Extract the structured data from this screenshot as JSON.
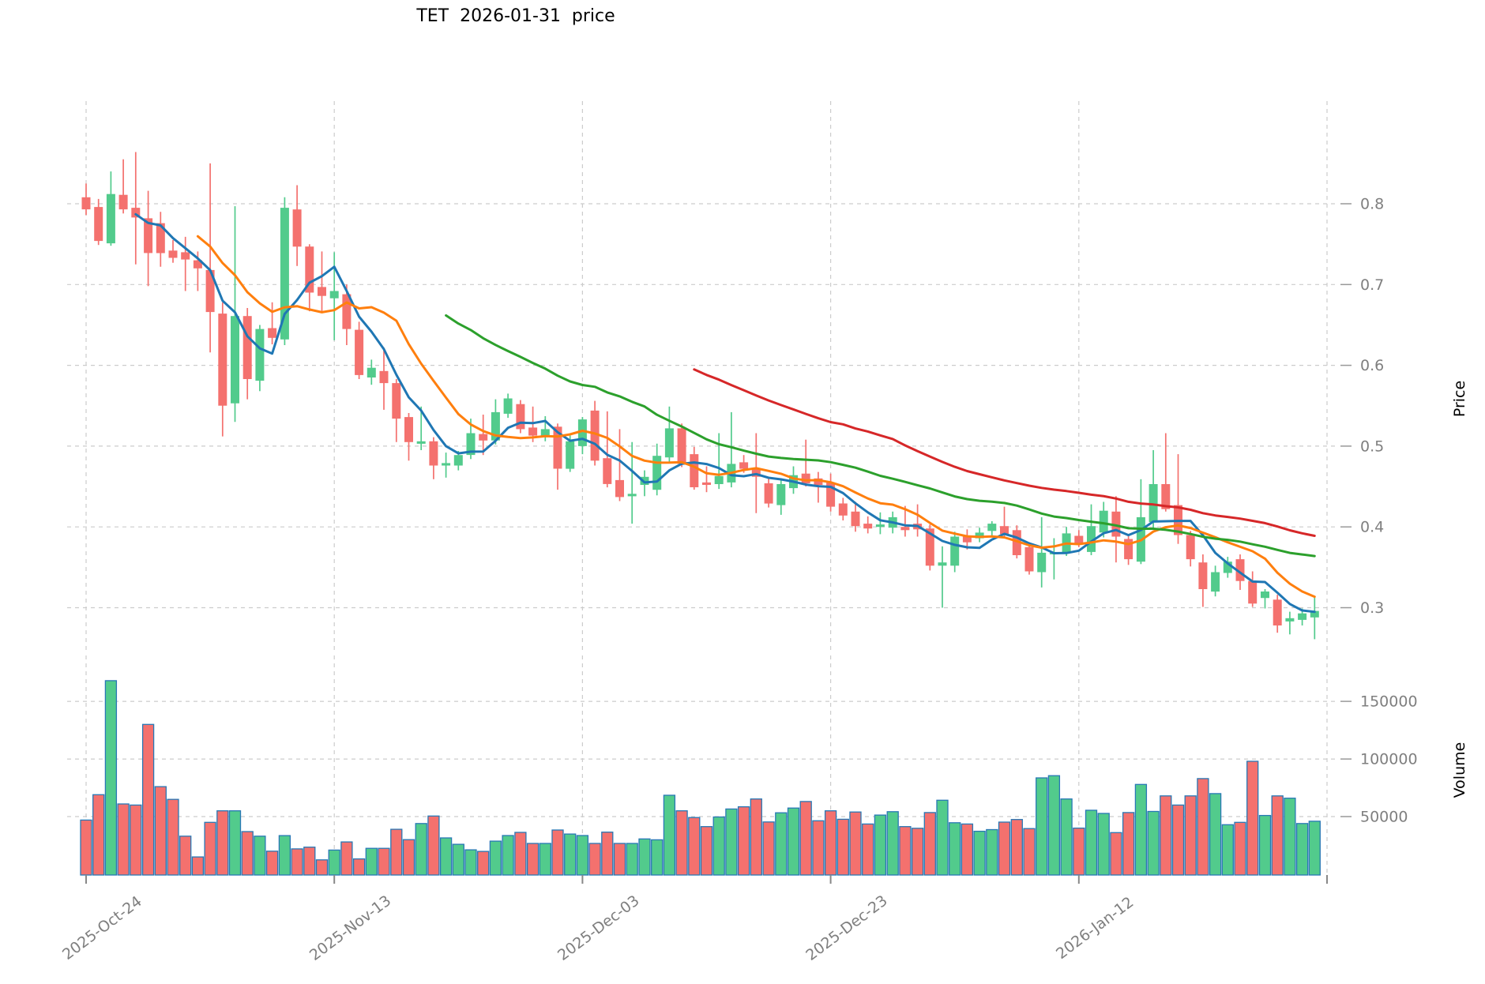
{
  "title": "TET  2026-01-31  price",
  "price_axis": {
    "label": "Price",
    "ticks": [
      0.8,
      0.7,
      0.6,
      0.5,
      0.4,
      0.3
    ]
  },
  "volume_axis": {
    "label": "Volume",
    "ticks": [
      150000,
      100000,
      50000
    ]
  },
  "colors": {
    "up": "#52cb8c",
    "down": "#f4716e",
    "volume_edge": "#2878b5",
    "ma5": "#1f77b4",
    "ma10": "#ff7f0e",
    "ma30": "#2ca02c",
    "ma50": "#d62728",
    "grid": "#cccccc",
    "tick_label": "#7f7f7f",
    "tick_mark": "#999999"
  },
  "chart_data": {
    "type": "candlestick",
    "title": "TET  2026-01-31  price",
    "xlabel": "",
    "ylabel": "Price",
    "ylabel2": "Volume",
    "price_ylim": [
      0.25,
      0.9
    ],
    "grid": true,
    "x_tick_labels": [
      {
        "index": 0,
        "label": "2025-Oct-24"
      },
      {
        "index": 20,
        "label": "2025-Nov-13"
      },
      {
        "index": 40,
        "label": "2025-Dec-03"
      },
      {
        "index": 60,
        "label": "2025-Dec-23"
      },
      {
        "index": 80,
        "label": "2026-Jan-12"
      }
    ],
    "x_gridline_indices": [
      0,
      20,
      40,
      60,
      80,
      100
    ],
    "moving_averages": [
      {
        "window": 5,
        "color_key": "ma5"
      },
      {
        "window": 10,
        "color_key": "ma10"
      },
      {
        "window": 30,
        "color_key": "ma30"
      },
      {
        "window": 50,
        "color_key": "ma50"
      }
    ],
    "dates": [
      "2025-10-24",
      "2025-10-25",
      "2025-10-26",
      "2025-10-27",
      "2025-10-28",
      "2025-10-29",
      "2025-10-30",
      "2025-10-31",
      "2025-11-01",
      "2025-11-02",
      "2025-11-03",
      "2025-11-04",
      "2025-11-05",
      "2025-11-06",
      "2025-11-07",
      "2025-11-08",
      "2025-11-09",
      "2025-11-10",
      "2025-11-11",
      "2025-11-12",
      "2025-11-13",
      "2025-11-14",
      "2025-11-15",
      "2025-11-16",
      "2025-11-17",
      "2025-11-18",
      "2025-11-19",
      "2025-11-20",
      "2025-11-21",
      "2025-11-22",
      "2025-11-23",
      "2025-11-24",
      "2025-11-25",
      "2025-11-26",
      "2025-11-27",
      "2025-11-28",
      "2025-11-29",
      "2025-11-30",
      "2025-12-01",
      "2025-12-02",
      "2025-12-03",
      "2025-12-04",
      "2025-12-05",
      "2025-12-06",
      "2025-12-07",
      "2025-12-08",
      "2025-12-09",
      "2025-12-10",
      "2025-12-11",
      "2025-12-12",
      "2025-12-13",
      "2025-12-14",
      "2025-12-15",
      "2025-12-16",
      "2025-12-17",
      "2025-12-18",
      "2025-12-19",
      "2025-12-20",
      "2025-12-21",
      "2025-12-22",
      "2025-12-23",
      "2025-12-24",
      "2025-12-25",
      "2025-12-26",
      "2025-12-27",
      "2025-12-28",
      "2025-12-29",
      "2025-12-30",
      "2025-12-31",
      "2026-01-01",
      "2026-01-02",
      "2026-01-03",
      "2026-01-04",
      "2026-01-05",
      "2026-01-06",
      "2026-01-07",
      "2026-01-08",
      "2026-01-09",
      "2026-01-10",
      "2026-01-11",
      "2026-01-12",
      "2026-01-13",
      "2026-01-14",
      "2026-01-15",
      "2026-01-16",
      "2026-01-17",
      "2026-01-18",
      "2026-01-19",
      "2026-01-20",
      "2026-01-21",
      "2026-01-22",
      "2026-01-23",
      "2026-01-24",
      "2026-01-25",
      "2026-01-26",
      "2026-01-27",
      "2026-01-28",
      "2026-01-29",
      "2026-01-30",
      "2026-01-31"
    ],
    "ohlc": [
      [
        0.808,
        0.825,
        0.786,
        0.793
      ],
      [
        0.796,
        0.806,
        0.749,
        0.754
      ],
      [
        0.751,
        0.84,
        0.748,
        0.812
      ],
      [
        0.811,
        0.855,
        0.788,
        0.793
      ],
      [
        0.795,
        0.864,
        0.725,
        0.783
      ],
      [
        0.782,
        0.816,
        0.698,
        0.739
      ],
      [
        0.776,
        0.79,
        0.722,
        0.739
      ],
      [
        0.742,
        0.755,
        0.727,
        0.733
      ],
      [
        0.74,
        0.759,
        0.692,
        0.731
      ],
      [
        0.73,
        0.741,
        0.692,
        0.72
      ],
      [
        0.718,
        0.85,
        0.616,
        0.666
      ],
      [
        0.664,
        0.678,
        0.512,
        0.55
      ],
      [
        0.553,
        0.797,
        0.53,
        0.661
      ],
      [
        0.661,
        0.671,
        0.558,
        0.583
      ],
      [
        0.581,
        0.65,
        0.568,
        0.645
      ],
      [
        0.646,
        0.678,
        0.626,
        0.634
      ],
      [
        0.632,
        0.808,
        0.625,
        0.795
      ],
      [
        0.793,
        0.823,
        0.723,
        0.747
      ],
      [
        0.747,
        0.75,
        0.667,
        0.69
      ],
      [
        0.697,
        0.741,
        0.665,
        0.686
      ],
      [
        0.683,
        0.74,
        0.631,
        0.692
      ],
      [
        0.688,
        0.7,
        0.625,
        0.645
      ],
      [
        0.644,
        0.654,
        0.583,
        0.588
      ],
      [
        0.585,
        0.607,
        0.576,
        0.597
      ],
      [
        0.593,
        0.622,
        0.545,
        0.578
      ],
      [
        0.578,
        0.583,
        0.505,
        0.534
      ],
      [
        0.536,
        0.541,
        0.482,
        0.505
      ],
      [
        0.503,
        0.549,
        0.495,
        0.506
      ],
      [
        0.506,
        0.511,
        0.459,
        0.476
      ],
      [
        0.476,
        0.492,
        0.461,
        0.479
      ],
      [
        0.476,
        0.494,
        0.47,
        0.489
      ],
      [
        0.489,
        0.534,
        0.484,
        0.516
      ],
      [
        0.515,
        0.539,
        0.489,
        0.507
      ],
      [
        0.507,
        0.558,
        0.502,
        0.542
      ],
      [
        0.54,
        0.565,
        0.535,
        0.559
      ],
      [
        0.552,
        0.557,
        0.516,
        0.521
      ],
      [
        0.523,
        0.549,
        0.505,
        0.513
      ],
      [
        0.513,
        0.537,
        0.506,
        0.521
      ],
      [
        0.524,
        0.528,
        0.446,
        0.472
      ],
      [
        0.472,
        0.513,
        0.468,
        0.506
      ],
      [
        0.5,
        0.536,
        0.49,
        0.533
      ],
      [
        0.544,
        0.556,
        0.476,
        0.482
      ],
      [
        0.485,
        0.543,
        0.449,
        0.453
      ],
      [
        0.458,
        0.521,
        0.432,
        0.437
      ],
      [
        0.438,
        0.505,
        0.404,
        0.441
      ],
      [
        0.452,
        0.47,
        0.438,
        0.462
      ],
      [
        0.446,
        0.503,
        0.439,
        0.488
      ],
      [
        0.486,
        0.549,
        0.479,
        0.522
      ],
      [
        0.522,
        0.528,
        0.474,
        0.478
      ],
      [
        0.49,
        0.499,
        0.446,
        0.449
      ],
      [
        0.455,
        0.475,
        0.443,
        0.452
      ],
      [
        0.453,
        0.516,
        0.447,
        0.463
      ],
      [
        0.455,
        0.542,
        0.449,
        0.478
      ],
      [
        0.48,
        0.489,
        0.467,
        0.472
      ],
      [
        0.472,
        0.516,
        0.417,
        0.462
      ],
      [
        0.454,
        0.46,
        0.424,
        0.429
      ],
      [
        0.427,
        0.458,
        0.415,
        0.453
      ],
      [
        0.448,
        0.475,
        0.441,
        0.464
      ],
      [
        0.466,
        0.508,
        0.45,
        0.454
      ],
      [
        0.46,
        0.468,
        0.43,
        0.452
      ],
      [
        0.455,
        0.466,
        0.419,
        0.425
      ],
      [
        0.429,
        0.436,
        0.408,
        0.414
      ],
      [
        0.419,
        0.431,
        0.394,
        0.401
      ],
      [
        0.404,
        0.413,
        0.392,
        0.398
      ],
      [
        0.4,
        0.418,
        0.391,
        0.403
      ],
      [
        0.399,
        0.419,
        0.392,
        0.412
      ],
      [
        0.4,
        0.426,
        0.388,
        0.396
      ],
      [
        0.404,
        0.428,
        0.388,
        0.397
      ],
      [
        0.398,
        0.403,
        0.346,
        0.352
      ],
      [
        0.352,
        0.376,
        0.3,
        0.356
      ],
      [
        0.352,
        0.394,
        0.344,
        0.388
      ],
      [
        0.388,
        0.397,
        0.372,
        0.381
      ],
      [
        0.386,
        0.399,
        0.381,
        0.393
      ],
      [
        0.395,
        0.407,
        0.389,
        0.404
      ],
      [
        0.401,
        0.425,
        0.386,
        0.391
      ],
      [
        0.396,
        0.402,
        0.361,
        0.365
      ],
      [
        0.375,
        0.381,
        0.341,
        0.345
      ],
      [
        0.344,
        0.412,
        0.325,
        0.368
      ],
      [
        0.367,
        0.386,
        0.335,
        0.368
      ],
      [
        0.368,
        0.4,
        0.364,
        0.392
      ],
      [
        0.389,
        0.396,
        0.375,
        0.38
      ],
      [
        0.369,
        0.428,
        0.365,
        0.401
      ],
      [
        0.393,
        0.431,
        0.387,
        0.42
      ],
      [
        0.419,
        0.438,
        0.356,
        0.388
      ],
      [
        0.385,
        0.391,
        0.353,
        0.36
      ],
      [
        0.357,
        0.459,
        0.354,
        0.412
      ],
      [
        0.406,
        0.495,
        0.399,
        0.453
      ],
      [
        0.453,
        0.516,
        0.419,
        0.422
      ],
      [
        0.427,
        0.49,
        0.379,
        0.39
      ],
      [
        0.39,
        0.395,
        0.351,
        0.36
      ],
      [
        0.356,
        0.366,
        0.301,
        0.323
      ],
      [
        0.32,
        0.352,
        0.314,
        0.344
      ],
      [
        0.343,
        0.363,
        0.337,
        0.357
      ],
      [
        0.36,
        0.366,
        0.322,
        0.333
      ],
      [
        0.333,
        0.345,
        0.301,
        0.305
      ],
      [
        0.312,
        0.323,
        0.299,
        0.32
      ],
      [
        0.31,
        0.316,
        0.269,
        0.278
      ],
      [
        0.283,
        0.295,
        0.267,
        0.287
      ],
      [
        0.285,
        0.299,
        0.278,
        0.293
      ],
      [
        0.288,
        0.313,
        0.261,
        0.296
      ]
    ],
    "volume": [
      47000,
      69000,
      168000,
      61000,
      60000,
      130000,
      76000,
      65000,
      33000,
      15000,
      45000,
      55000,
      55000,
      37000,
      33000,
      20000,
      33500,
      22000,
      23500,
      12500,
      21000,
      28000,
      13300,
      22500,
      22500,
      39000,
      30000,
      44000,
      50500,
      31500,
      26000,
      21200,
      19800,
      28700,
      33600,
      36300,
      26700,
      26700,
      38400,
      34900,
      33600,
      26700,
      36500,
      26700,
      26700,
      30600,
      29900,
      68500,
      55000,
      49200,
      41300,
      49700,
      56600,
      58500,
      65300,
      45400,
      53300,
      57400,
      63100,
      46400,
      55000,
      47700,
      54000,
      43600,
      51300,
      54300,
      41300,
      39900,
      53500,
      64200,
      44700,
      43600,
      37300,
      38700,
      45200,
      47500,
      39600,
      83600,
      85500,
      65300,
      40000,
      55500,
      52800,
      36100,
      53500,
      77900,
      54500,
      68000,
      60000,
      68000,
      83000,
      70000,
      43000,
      45000,
      98000,
      51000,
      68000,
      66000,
      44000,
      46000
    ]
  }
}
